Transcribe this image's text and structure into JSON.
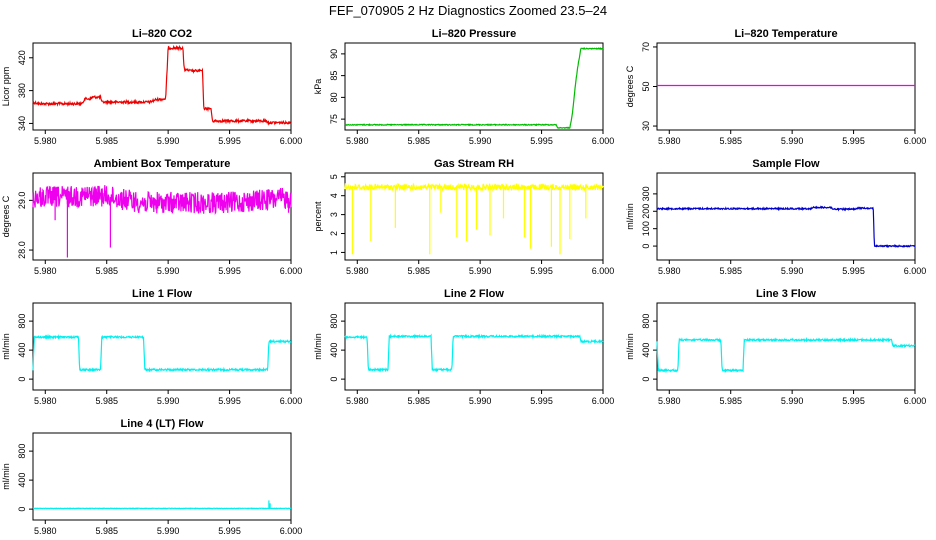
{
  "page_title": "FEF_070905  2 Hz Diagnostics Zoomed 23.5–24",
  "chart_data": [
    {
      "type": "line",
      "title": "Li–820 CO2",
      "ylabel": "Licor ppm",
      "color": "#ee0000",
      "xlim": [
        5.979,
        6.0
      ],
      "ylim": [
        332,
        438
      ],
      "xticks": [
        "5.980",
        "5.985",
        "5.990",
        "5.995",
        "6.000"
      ],
      "yticks": [
        {
          "v": 340,
          "label": "340"
        },
        {
          "v": 380,
          "label": "380"
        },
        {
          "v": 420,
          "label": "420"
        }
      ],
      "series": [
        {
          "noise": 1.5,
          "points": [
            [
              5.979,
              366
            ],
            [
              5.9795,
              364
            ],
            [
              5.983,
              364
            ],
            [
              5.9832,
              370
            ],
            [
              5.9837,
              370
            ],
            [
              5.9838,
              372
            ],
            [
              5.9845,
              372
            ],
            [
              5.9846,
              366
            ],
            [
              5.9885,
              366
            ],
            [
              5.989,
              369
            ],
            [
              5.9898,
              370
            ],
            [
              5.99,
              432
            ],
            [
              5.9912,
              432
            ],
            [
              5.9913,
              406
            ],
            [
              5.9918,
              404
            ],
            [
              5.9928,
              404
            ],
            [
              5.9929,
              358
            ],
            [
              5.9935,
              358
            ],
            [
              5.9936,
              343
            ],
            [
              5.998,
              343
            ],
            [
              5.9981,
              341
            ],
            [
              6.0,
              341
            ]
          ]
        }
      ]
    },
    {
      "type": "line",
      "title": "Li–820 Pressure",
      "ylabel": "kPa",
      "color": "#00bb00",
      "xlim": [
        5.979,
        6.0
      ],
      "ylim": [
        72.5,
        92.5
      ],
      "xticks": [
        "5.980",
        "5.985",
        "5.990",
        "5.995",
        "6.000"
      ],
      "yticks": [
        {
          "v": 75,
          "label": "75"
        },
        {
          "v": 80,
          "label": "80"
        },
        {
          "v": 85,
          "label": "85"
        },
        {
          "v": 90,
          "label": "90"
        }
      ],
      "series": [
        {
          "noise": 0.1,
          "points": [
            [
              5.979,
              73.7
            ],
            [
              5.9962,
              73.7
            ],
            [
              5.9963,
              73.0
            ],
            [
              5.9973,
              73.0
            ],
            [
              5.9975,
              76
            ],
            [
              5.9978,
              84
            ],
            [
              5.998,
              88
            ],
            [
              5.9982,
              91.2
            ],
            [
              6.0,
              91.2
            ]
          ]
        }
      ]
    },
    {
      "type": "line",
      "title": "Li–820 Temperature",
      "ylabel": "degrees C",
      "color": "#ee00ee",
      "xlim": [
        5.979,
        6.0
      ],
      "ylim": [
        28,
        72
      ],
      "xticks": [
        "5.980",
        "5.985",
        "5.990",
        "5.995",
        "6.000"
      ],
      "yticks": [
        {
          "v": 30,
          "label": "30"
        },
        {
          "v": 50,
          "label": "50"
        },
        {
          "v": 70,
          "label": "70"
        }
      ],
      "series": [
        {
          "noise": 0,
          "points": [
            [
              5.979,
              50.5
            ],
            [
              6.0,
              50.5
            ]
          ]
        }
      ]
    },
    {
      "type": "line",
      "title": "Ambient Box Temperature",
      "ylabel": "degrees C",
      "color": "#ee00ee",
      "xlim": [
        5.979,
        6.0
      ],
      "ylim": [
        27.8,
        29.55
      ],
      "xticks": [
        "5.980",
        "5.985",
        "5.990",
        "5.995",
        "6.000"
      ],
      "yticks": [
        {
          "v": 28.0,
          "label": "28.0"
        },
        {
          "v": 29.0,
          "label": "29.0"
        }
      ],
      "series": [
        {
          "noise": 0.22,
          "points": [
            [
              5.979,
              29.05
            ],
            [
              5.9845,
              29.1
            ],
            [
              5.988,
              28.95
            ],
            [
              5.995,
              28.95
            ],
            [
              6.0,
              29.05
            ]
          ],
          "dips": [
            [
              5.9818,
              27.85
            ],
            [
              5.9853,
              28.05
            ],
            [
              5.9808,
              28.6
            ],
            [
              5.9998,
              28.75
            ]
          ]
        }
      ]
    },
    {
      "type": "line",
      "title": "Gas Stream RH",
      "ylabel": "percent",
      "color": "#ffff00",
      "xlim": [
        5.979,
        6.0
      ],
      "ylim": [
        0.6,
        5.2
      ],
      "xticks": [
        "5.980",
        "5.985",
        "5.990",
        "5.995",
        "6.000"
      ],
      "yticks": [
        {
          "v": 1,
          "label": "1"
        },
        {
          "v": 2,
          "label": "2"
        },
        {
          "v": 3,
          "label": "3"
        },
        {
          "v": 4,
          "label": "4"
        },
        {
          "v": 5,
          "label": "5"
        }
      ],
      "series": [
        {
          "noise": 0.15,
          "points": [
            [
              5.979,
              4.45
            ],
            [
              6.0,
              4.45
            ]
          ],
          "dips": [
            [
              5.9796,
              0.9
            ],
            [
              5.9811,
              1.6
            ],
            [
              5.9831,
              2.3
            ],
            [
              5.9859,
              0.9
            ],
            [
              5.9868,
              3.1
            ],
            [
              5.9881,
              1.8
            ],
            [
              5.9889,
              1.6
            ],
            [
              5.9897,
              2.2
            ],
            [
              5.9908,
              1.9
            ],
            [
              5.9919,
              2.8
            ],
            [
              5.9936,
              1.8
            ],
            [
              5.9941,
              1.2
            ],
            [
              5.9958,
              1.3
            ],
            [
              5.9965,
              0.9
            ],
            [
              5.9973,
              1.7
            ],
            [
              5.9986,
              2.8
            ]
          ]
        }
      ]
    },
    {
      "type": "line",
      "title": "Sample Flow",
      "ylabel": "ml/min",
      "color": "#0000cc",
      "xlim": [
        5.979,
        6.0
      ],
      "ylim": [
        -80,
        420
      ],
      "xticks": [
        "5.980",
        "5.985",
        "5.990",
        "5.995",
        "6.000"
      ],
      "yticks": [
        {
          "v": 0,
          "label": "0"
        },
        {
          "v": 100,
          "label": "100"
        },
        {
          "v": 200,
          "label": "200"
        },
        {
          "v": 300,
          "label": "300"
        }
      ],
      "series": [
        {
          "noise": 4,
          "points": [
            [
              5.979,
              215
            ],
            [
              5.9915,
              215
            ],
            [
              5.9917,
              222
            ],
            [
              5.9932,
              222
            ],
            [
              5.9933,
              212
            ],
            [
              5.9952,
              212
            ],
            [
              5.9953,
              218
            ],
            [
              5.9966,
              218
            ],
            [
              5.9967,
              0
            ],
            [
              6.0,
              0
            ]
          ]
        }
      ]
    },
    {
      "type": "line",
      "title": "Line 1 Flow",
      "ylabel": "ml/min",
      "color": "#00f0f0",
      "xlim": [
        5.979,
        6.0
      ],
      "ylim": [
        -150,
        1050
      ],
      "xticks": [
        "5.980",
        "5.985",
        "5.990",
        "5.995",
        "6.000"
      ],
      "yticks": [
        {
          "v": 0,
          "label": "0"
        },
        {
          "v": 400,
          "label": "400"
        },
        {
          "v": 800,
          "label": "800"
        }
      ],
      "series": [
        {
          "noise": 12,
          "points": [
            [
              5.979,
              130
            ],
            [
              5.9791,
              580
            ],
            [
              5.9827,
              580
            ],
            [
              5.9828,
              130
            ],
            [
              5.9845,
              130
            ],
            [
              5.9846,
              580
            ],
            [
              5.988,
              580
            ],
            [
              5.9881,
              130
            ],
            [
              5.9981,
              130
            ],
            [
              5.9982,
              520
            ],
            [
              6.0,
              520
            ]
          ]
        }
      ]
    },
    {
      "type": "line",
      "title": "Line 2 Flow",
      "ylabel": "ml/min",
      "color": "#00f0f0",
      "xlim": [
        5.979,
        6.0
      ],
      "ylim": [
        -150,
        1050
      ],
      "xticks": [
        "5.980",
        "5.985",
        "5.990",
        "5.995",
        "6.000"
      ],
      "yticks": [
        {
          "v": 0,
          "label": "0"
        },
        {
          "v": 400,
          "label": "400"
        },
        {
          "v": 800,
          "label": "800"
        }
      ],
      "series": [
        {
          "noise": 12,
          "points": [
            [
              5.979,
              580
            ],
            [
              5.9808,
              580
            ],
            [
              5.9809,
              130
            ],
            [
              5.9825,
              130
            ],
            [
              5.9826,
              590
            ],
            [
              5.986,
              590
            ],
            [
              5.9861,
              130
            ],
            [
              5.9877,
              130
            ],
            [
              5.9878,
              590
            ],
            [
              5.9981,
              590
            ],
            [
              5.9982,
              520
            ],
            [
              6.0,
              520
            ]
          ]
        }
      ]
    },
    {
      "type": "line",
      "title": "Line 3 Flow",
      "ylabel": "ml/min",
      "color": "#00f0f0",
      "xlim": [
        5.979,
        6.0
      ],
      "ylim": [
        -150,
        1050
      ],
      "xticks": [
        "5.980",
        "5.985",
        "5.990",
        "5.995",
        "6.000"
      ],
      "yticks": [
        {
          "v": 0,
          "label": "0"
        },
        {
          "v": 400,
          "label": "400"
        },
        {
          "v": 800,
          "label": "800"
        }
      ],
      "series": [
        {
          "noise": 12,
          "points": [
            [
              5.979,
              520
            ],
            [
              5.9791,
              120
            ],
            [
              5.9807,
              120
            ],
            [
              5.9808,
              540
            ],
            [
              5.9842,
              540
            ],
            [
              5.9843,
              120
            ],
            [
              5.986,
              120
            ],
            [
              5.9861,
              540
            ],
            [
              5.9981,
              540
            ],
            [
              5.9982,
              460
            ],
            [
              6.0,
              460
            ]
          ]
        }
      ]
    },
    {
      "type": "line",
      "title": "Line 4 (LT) Flow",
      "ylabel": "ml/min",
      "color": "#00f0f0",
      "xlim": [
        5.979,
        6.0
      ],
      "ylim": [
        -150,
        1050
      ],
      "xticks": [
        "5.980",
        "5.985",
        "5.990",
        "5.995",
        "6.000"
      ],
      "yticks": [
        {
          "v": 0,
          "label": "0"
        },
        {
          "v": 400,
          "label": "400"
        },
        {
          "v": 800,
          "label": "800"
        }
      ],
      "series": [
        {
          "noise": 3,
          "points": [
            [
              5.979,
              10
            ],
            [
              6.0,
              10
            ]
          ],
          "dips": [
            [
              5.9982,
              120
            ],
            [
              5.9983,
              80
            ]
          ]
        }
      ]
    }
  ]
}
